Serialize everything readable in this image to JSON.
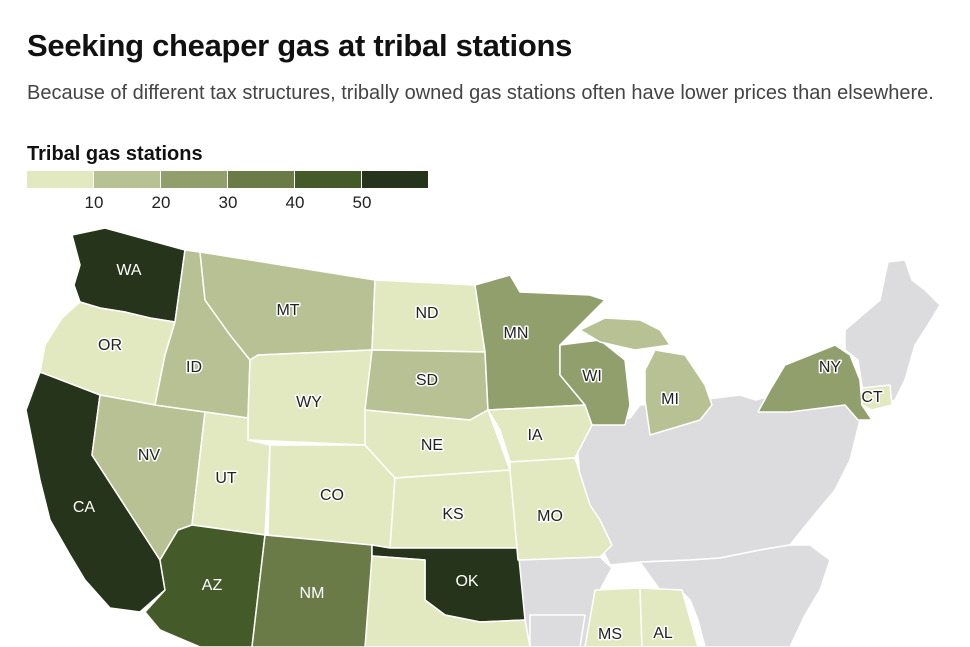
{
  "title": "Seeking cheaper gas at tribal stations",
  "subtitle": "Because of different tax structures, tribally owned gas stations often have lower prices than elsewhere.",
  "legend": {
    "title": "Tribal gas stations",
    "colors": [
      "#e2e9c1",
      "#b7c194",
      "#919f6d",
      "#6b7b48",
      "#455a29",
      "#25341a"
    ],
    "ticks": [
      "10",
      "20",
      "30",
      "40",
      "50"
    ]
  },
  "colors": {
    "no_data": "#dcdcde",
    "border": "#ffffff"
  },
  "states": {
    "WA": "WA",
    "OR": "OR",
    "CA": "CA",
    "NV": "NV",
    "ID": "ID",
    "MT": "MT",
    "WY": "WY",
    "UT": "UT",
    "AZ": "AZ",
    "CO": "CO",
    "NM": "NM",
    "ND": "ND",
    "SD": "SD",
    "NE": "NE",
    "KS": "KS",
    "OK": "OK",
    "MN": "MN",
    "IA": "IA",
    "MO": "MO",
    "WI": "WI",
    "MI": "MI",
    "NY": "NY",
    "CT": "CT",
    "MS": "MS",
    "AL": "AL"
  }
}
